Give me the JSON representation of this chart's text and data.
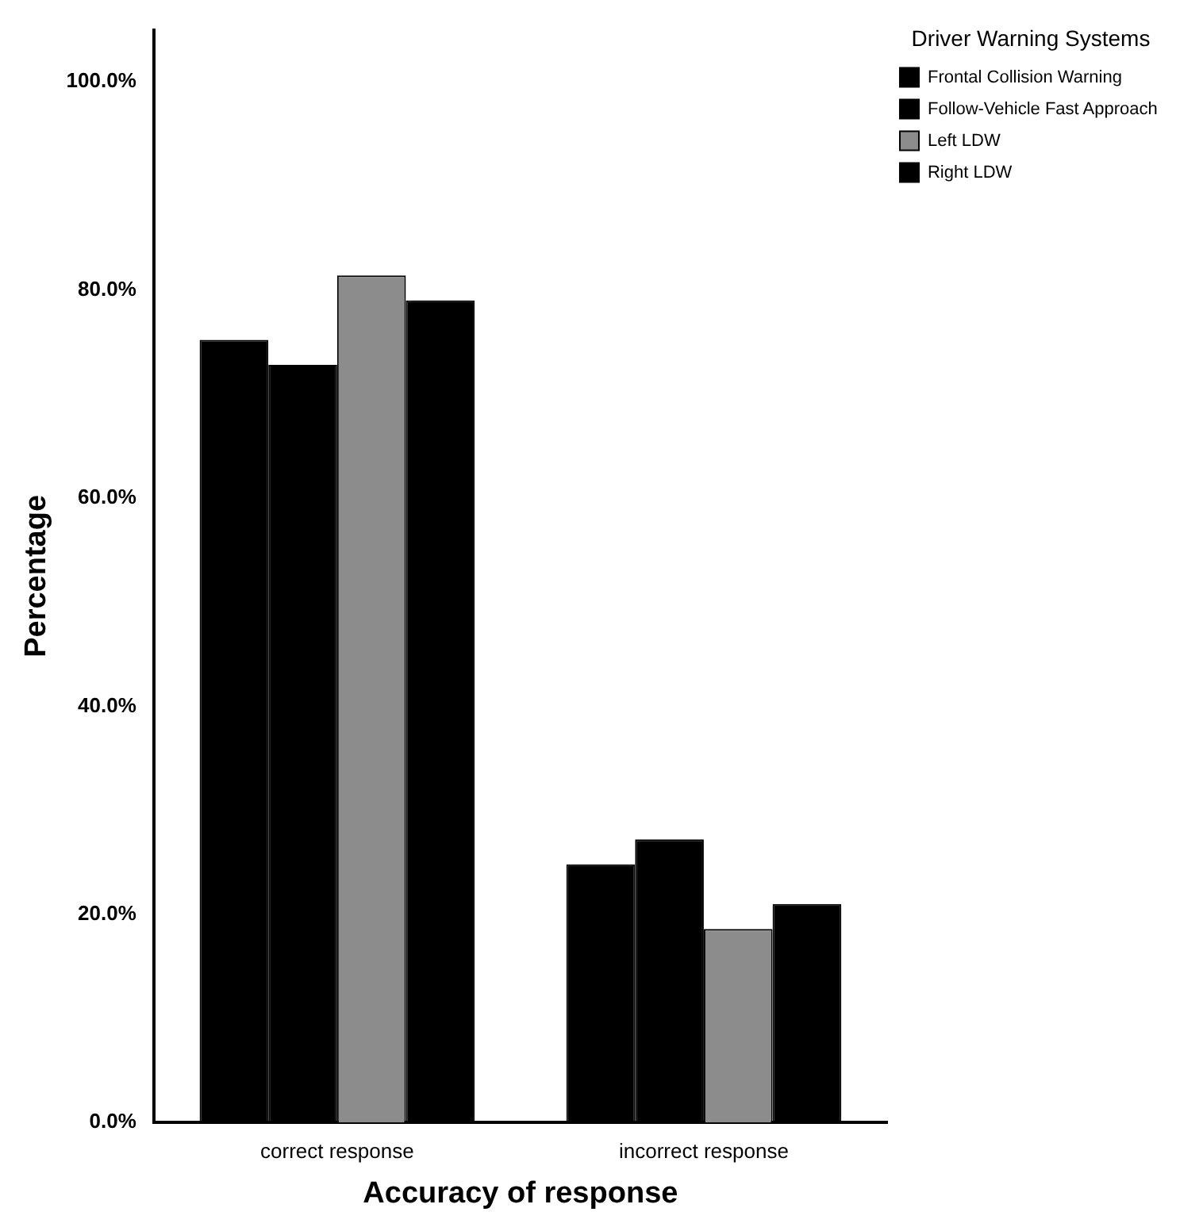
{
  "chart_data": {
    "type": "bar",
    "xlabel": "Accuracy of response",
    "ylabel": "Percentage",
    "legend_title": "Driver Warning Systems",
    "categories": [
      "correct response",
      "incorrect response"
    ],
    "series": [
      {
        "name": "Frontal Collision Warning",
        "color": "#000000",
        "values": [
          75.2,
          24.8
        ]
      },
      {
        "name": "Follow-Vehicle Fast Approach",
        "color": "#000000",
        "values": [
          72.8,
          27.2
        ]
      },
      {
        "name": "Left LDW",
        "color": "#8c8c8c",
        "values": [
          81.4,
          18.6
        ]
      },
      {
        "name": "Right LDW",
        "color": "#000000",
        "values": [
          79.0,
          21.0
        ]
      }
    ],
    "ylim": [
      0,
      105
    ],
    "yticks": [
      {
        "value": 0,
        "label": "0.0%"
      },
      {
        "value": 20,
        "label": "20.0%"
      },
      {
        "value": 40,
        "label": "40.0%"
      },
      {
        "value": 60,
        "label": "60.0%"
      },
      {
        "value": 80,
        "label": "80.0%"
      },
      {
        "value": 100,
        "label": "100.0%"
      }
    ],
    "grid": false,
    "legend": "top right"
  }
}
